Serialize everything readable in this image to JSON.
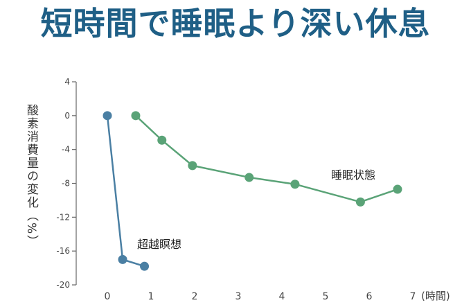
{
  "chart_data": {
    "type": "line",
    "title": "短時間で睡眠より深い休息",
    "ylabel": "酸素消費量の変化（%）",
    "xlabel": "(時間)",
    "ylim": [
      -20,
      4
    ],
    "xlim": [
      0,
      7
    ],
    "y_ticks": [
      4,
      0,
      -4,
      -8,
      -12,
      -16,
      -20
    ],
    "x_ticks": [
      0,
      1,
      2,
      3,
      4,
      5,
      6,
      7
    ],
    "x_tick_labels": [
      "0",
      "1",
      "2",
      "3",
      "4",
      "5",
      "6",
      "7"
    ],
    "grid": false,
    "series": [
      {
        "name": "超越瞑想",
        "color": "#4a7fa3",
        "x": [
          0.0,
          0.35,
          0.85
        ],
        "y": [
          0.0,
          -17.0,
          -17.8
        ]
      },
      {
        "name": "睡眠状態",
        "color": "#5aa377",
        "x": [
          0.65,
          1.25,
          1.95,
          3.25,
          4.3,
          5.8,
          6.65
        ],
        "y": [
          0.0,
          -2.9,
          -5.9,
          -7.3,
          -8.1,
          -10.2,
          -8.7
        ]
      }
    ]
  }
}
